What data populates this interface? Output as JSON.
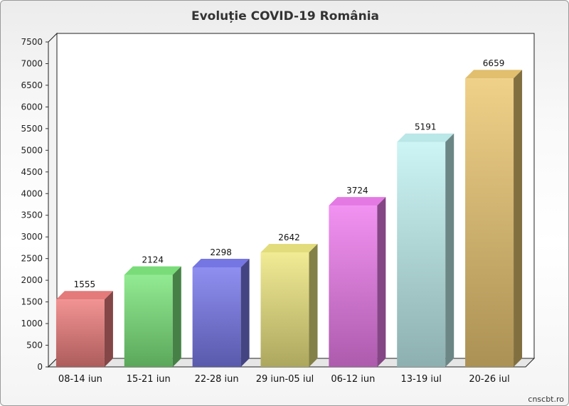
{
  "chart_data": {
    "type": "bar",
    "title": "Evoluție COVID-19 România",
    "credit": "cnscbt.ro",
    "categories": [
      "08-14 iun",
      "15-21 iun",
      "22-28 iun",
      "29 iun-05 iul",
      "06-12 iun",
      "13-19 iul",
      "20-26 iul"
    ],
    "values": [
      1555,
      2124,
      2298,
      2642,
      3724,
      5191,
      6659
    ],
    "ylim": [
      0,
      7500
    ],
    "ytick_step": 500,
    "grid": false,
    "legend": "none",
    "colors": [
      "#f08080",
      "#7fe87f",
      "#7b7bef",
      "#efe882",
      "#f07ff0",
      "#c4f3f3",
      "#edc974"
    ]
  }
}
